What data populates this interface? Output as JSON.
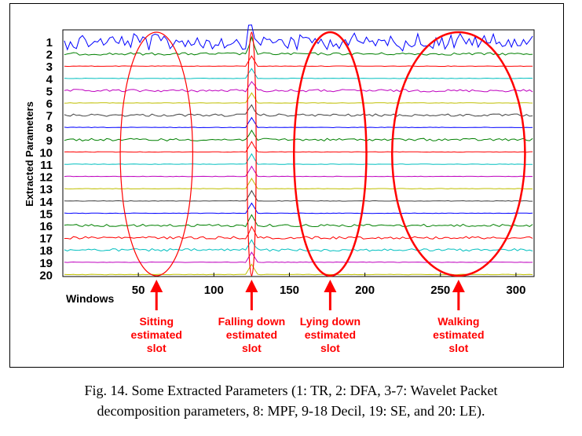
{
  "chart_data": {
    "type": "line",
    "ylabel": "Extracted Parameters",
    "xlabel": "Windows",
    "x_ticks": [
      50,
      100,
      150,
      200,
      250,
      300
    ],
    "xlim": [
      0,
      312
    ],
    "rows": [
      "1",
      "2",
      "3",
      "4",
      "5",
      "6",
      "7",
      "8",
      "9",
      "10",
      "11",
      "12",
      "13",
      "14",
      "15",
      "16",
      "17",
      "18",
      "19",
      "20"
    ],
    "series": [
      {
        "name": "1",
        "color": "#0000ff",
        "style": "wild"
      },
      {
        "name": "2",
        "color": "#008000",
        "style": "noisy"
      },
      {
        "name": "3",
        "color": "#ff0000",
        "style": "flat"
      },
      {
        "name": "4",
        "color": "#00bfbf",
        "style": "flat"
      },
      {
        "name": "5",
        "color": "#bf00bf",
        "style": "noisy"
      },
      {
        "name": "6",
        "color": "#bfbf00",
        "style": "flat"
      },
      {
        "name": "7",
        "color": "#404040",
        "style": "noisy"
      },
      {
        "name": "8",
        "color": "#0000ff",
        "style": "flat"
      },
      {
        "name": "9",
        "color": "#008000",
        "style": "noisy"
      },
      {
        "name": "10",
        "color": "#ff0000",
        "style": "flat"
      },
      {
        "name": "11",
        "color": "#00bfbf",
        "style": "flat"
      },
      {
        "name": "12",
        "color": "#bf00bf",
        "style": "flat"
      },
      {
        "name": "13",
        "color": "#bfbf00",
        "style": "flat"
      },
      {
        "name": "14",
        "color": "#404040",
        "style": "flat"
      },
      {
        "name": "15",
        "color": "#0000ff",
        "style": "flat"
      },
      {
        "name": "16",
        "color": "#008000",
        "style": "noisy"
      },
      {
        "name": "17",
        "color": "#ff0000",
        "style": "noisy"
      },
      {
        "name": "18",
        "color": "#00bfbf",
        "style": "noisy"
      },
      {
        "name": "19",
        "color": "#bf00bf",
        "style": "flat"
      },
      {
        "name": "20",
        "color": "#bfbf00",
        "style": "flat"
      }
    ],
    "event_window": 125,
    "slots": [
      {
        "label_lines": [
          "Sitting",
          "estimated",
          "slot"
        ],
        "center": 62,
        "half_width": 24,
        "line": "thin"
      },
      {
        "label_lines": [
          "Falling down",
          "estimated",
          "slot"
        ],
        "center": 125,
        "half_width": 3,
        "line": "thin"
      },
      {
        "label_lines": [
          "Lying down",
          "estimated",
          "slot"
        ],
        "center": 177,
        "half_width": 24,
        "line": "thick"
      },
      {
        "label_lines": [
          "Walking",
          "estimated",
          "slot"
        ],
        "center": 262,
        "half_width": 44,
        "line": "thick"
      }
    ],
    "annotation_color": "#ff0000"
  },
  "caption": {
    "line1": "Fig. 14. Some Extracted Parameters (1: TR, 2: DFA, 3-7: Wavelet Packet",
    "line2": "decomposition parameters, 8: MPF, 9-18 Decil, 19: SE, and 20: LE)."
  }
}
